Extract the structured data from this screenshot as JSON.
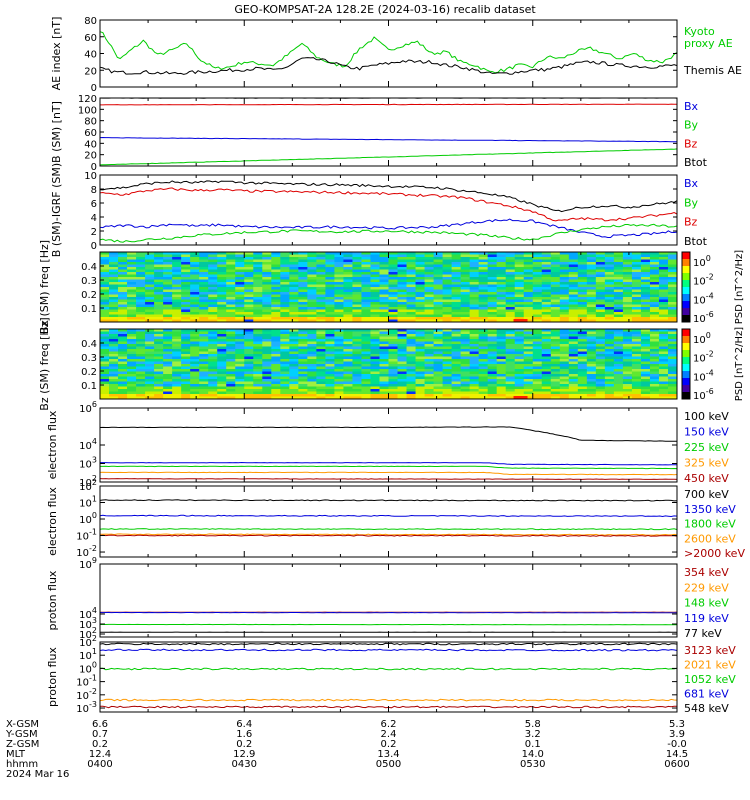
{
  "title": "GEO-KOMPSAT-2A 128.2E (2024-03-16) recalib dataset",
  "chart_data": [
    {
      "type": "line",
      "name": "ae",
      "ylabel": "AE index [nT]",
      "ylim": [
        0,
        80
      ],
      "yticks": [
        "0",
        "20",
        "40",
        "60",
        "80"
      ],
      "yscale": "linear",
      "series": [
        {
          "name": "Kyoto proxy AE",
          "color": "#00cc00",
          "x": [
            0,
            2,
            4,
            6,
            9,
            12,
            15,
            18,
            21,
            24,
            27,
            30,
            33,
            36,
            39,
            42,
            45,
            48,
            51,
            54,
            57,
            60,
            63,
            66,
            69,
            72,
            75,
            78,
            81,
            84,
            87,
            90,
            93,
            96,
            99,
            102,
            105,
            108,
            111,
            114,
            117,
            120
          ],
          "values": [
            68,
            52,
            32,
            42,
            55,
            38,
            44,
            52,
            32,
            22,
            24,
            30,
            28,
            26,
            38,
            52,
            36,
            28,
            25,
            46,
            58,
            44,
            50,
            54,
            40,
            42,
            30,
            26,
            18,
            20,
            26,
            24,
            36,
            34,
            42,
            46,
            40,
            34,
            40,
            32,
            30,
            40
          ]
        },
        {
          "name": "Themis AE",
          "color": "#000000",
          "x": [
            0,
            3,
            6,
            9,
            12,
            15,
            18,
            21,
            24,
            27,
            30,
            33,
            36,
            39,
            42,
            45,
            48,
            51,
            54,
            57,
            60,
            63,
            66,
            69,
            72,
            75,
            78,
            81,
            84,
            87,
            90,
            93,
            96,
            99,
            102,
            105,
            108,
            111,
            114,
            117,
            120
          ],
          "values": [
            22,
            18,
            17,
            18,
            17,
            16,
            17,
            18,
            19,
            20,
            21,
            22,
            20,
            24,
            34,
            33,
            30,
            24,
            22,
            26,
            28,
            31,
            30,
            30,
            26,
            24,
            20,
            16,
            16,
            18,
            20,
            21,
            24,
            28,
            30,
            28,
            26,
            25,
            24,
            25,
            26
          ]
        }
      ]
    },
    {
      "type": "line",
      "name": "b-sm",
      "ylabel": "B (SM) [nT]",
      "ylim": [
        0,
        120
      ],
      "yticks": [
        "0",
        "20",
        "40",
        "60",
        "80",
        "100",
        "120"
      ],
      "yscale": "linear",
      "series": [
        {
          "name": "Bx",
          "color": "#0000dd",
          "x": [
            0,
            120
          ],
          "values": [
            50,
            43
          ]
        },
        {
          "name": "By",
          "color": "#00cc00",
          "x": [
            0,
            120
          ],
          "values": [
            2,
            30
          ]
        },
        {
          "name": "Bz",
          "color": "#dd0000",
          "x": [
            0,
            120
          ],
          "values": [
            108,
            109
          ]
        },
        {
          "name": "Btot",
          "color": "#000000",
          "x": [
            0,
            120
          ],
          "values": [
            120,
            120
          ]
        }
      ]
    },
    {
      "type": "line",
      "name": "b-grf",
      "ylabel": "B (SM)-IGRF (SM)",
      "ylim": [
        0,
        10
      ],
      "yticks": [
        "0",
        "2",
        "4",
        "6",
        "8",
        "10"
      ],
      "yscale": "linear",
      "series": [
        {
          "name": "Bx",
          "color": "#0000dd",
          "x": [
            0,
            5,
            10,
            15,
            20,
            25,
            30,
            40,
            50,
            60,
            70,
            75,
            80,
            85,
            90,
            95,
            100,
            105,
            110,
            115,
            120
          ],
          "values": [
            2.5,
            2.8,
            2.6,
            3.0,
            2.7,
            2.9,
            2.6,
            2.5,
            2.6,
            2.4,
            2.6,
            3.0,
            3.4,
            3.6,
            3.4,
            2.6,
            1.8,
            1.2,
            1.4,
            1.6,
            2.0
          ]
        },
        {
          "name": "By",
          "color": "#00cc00",
          "x": [
            0,
            5,
            10,
            15,
            20,
            25,
            30,
            40,
            50,
            60,
            70,
            75,
            80,
            85,
            90,
            95,
            100,
            105,
            110,
            115,
            120
          ],
          "values": [
            0.8,
            0.5,
            0.8,
            1.0,
            1.4,
            1.6,
            1.8,
            2.0,
            1.9,
            2.0,
            1.8,
            1.6,
            1.4,
            1.0,
            0.8,
            1.6,
            2.2,
            2.6,
            2.8,
            2.8,
            2.6
          ]
        },
        {
          "name": "Bz",
          "color": "#dd0000",
          "x": [
            0,
            5,
            10,
            15,
            20,
            25,
            30,
            40,
            50,
            60,
            70,
            75,
            80,
            85,
            90,
            95,
            100,
            105,
            110,
            115,
            120
          ],
          "values": [
            7.4,
            7.2,
            7.8,
            8.0,
            7.8,
            7.9,
            7.7,
            7.6,
            7.5,
            7.3,
            7.0,
            6.8,
            6.2,
            5.6,
            4.8,
            3.4,
            3.8,
            3.6,
            3.8,
            4.2,
            4.6
          ]
        },
        {
          "name": "Btot",
          "color": "#000000",
          "x": [
            0,
            5,
            10,
            15,
            20,
            25,
            30,
            40,
            50,
            60,
            70,
            75,
            80,
            85,
            90,
            95,
            100,
            105,
            110,
            115,
            120
          ],
          "values": [
            8.0,
            8.2,
            8.8,
            9.0,
            8.9,
            9.1,
            8.9,
            8.7,
            8.6,
            8.4,
            8.2,
            7.8,
            7.4,
            6.8,
            5.8,
            4.8,
            5.4,
            5.6,
            5.4,
            5.8,
            6.2
          ]
        }
      ]
    },
    {
      "type": "heatmap",
      "name": "bx-spectrogram",
      "ylabel": "Bx (SM) freq [Hz]",
      "ylim": [
        0,
        0.5
      ],
      "yticks": [
        "0.1",
        "0.2",
        "0.3",
        "0.4"
      ],
      "colorbar": {
        "label": "PSD [nT^2/Hz]",
        "ticks": [
          "10^0",
          "10^-2",
          "10^-4",
          "10^-6"
        ]
      }
    },
    {
      "type": "heatmap",
      "name": "bz-spectrogram",
      "ylabel": "Bz (SM) freq [Hz]",
      "ylim": [
        0,
        0.5
      ],
      "yticks": [
        "0.1",
        "0.2",
        "0.3",
        "0.4"
      ],
      "colorbar": {
        "label": "PSD [nT^2/Hz]",
        "ticks": [
          "10^0",
          "10^-2",
          "10^-4",
          "10^-6"
        ]
      }
    },
    {
      "type": "line",
      "name": "electron-flux-1",
      "ylabel": "electron flux",
      "ylim": [
        100,
        1000000
      ],
      "yscale": "log",
      "series": [
        {
          "name": "100 keV",
          "color": "#000000",
          "x": [
            0,
            60,
            85,
            90,
            95,
            100,
            120
          ],
          "values": [
            90000,
            90000,
            95000,
            60000,
            35000,
            18000,
            16000
          ]
        },
        {
          "name": "150 keV",
          "color": "#0000dd",
          "x": [
            0,
            80,
            85,
            120
          ],
          "values": [
            1100,
            1100,
            900,
            850
          ]
        },
        {
          "name": "225 keV",
          "color": "#00cc00",
          "x": [
            0,
            80,
            85,
            120
          ],
          "values": [
            700,
            700,
            560,
            540
          ]
        },
        {
          "name": "325 keV",
          "color": "#ff9900",
          "x": [
            0,
            80,
            85,
            120
          ],
          "values": [
            330,
            330,
            260,
            250
          ]
        },
        {
          "name": "450 keV",
          "color": "#aa0000",
          "x": [
            0,
            120
          ],
          "values": [
            150,
            140
          ]
        }
      ]
    },
    {
      "type": "line",
      "name": "electron-flux-2",
      "ylabel": "electron flux",
      "ylim": [
        0.005,
        100
      ],
      "yscale": "log",
      "series": [
        {
          "name": "700 keV",
          "color": "#000000",
          "x": [
            0,
            120
          ],
          "values": [
            14,
            13
          ]
        },
        {
          "name": "1350 keV",
          "color": "#0000dd",
          "x": [
            0,
            120
          ],
          "values": [
            1.6,
            1.5
          ]
        },
        {
          "name": "1800 keV",
          "color": "#00cc00",
          "x": [
            0,
            120
          ],
          "values": [
            0.25,
            0.24
          ]
        },
        {
          "name": "2600 keV",
          "color": "#ff9900",
          "x": [
            0,
            120
          ],
          "values": [
            0.12,
            0.11
          ]
        },
        {
          "name": ">2000 keV",
          "color": "#aa0000",
          "x": [
            0,
            120
          ],
          "values": [
            0.1,
            0.095
          ]
        }
      ]
    },
    {
      "type": "line",
      "name": "proton-flux-1",
      "ylabel": "proton flux",
      "ylim": [
        50,
        1000000000
      ],
      "yscale": "log",
      "series": [
        {
          "name": "354 keV",
          "color": "#aa0000",
          "x": [
            0,
            120
          ],
          "values": [
            15000,
            15000
          ]
        },
        {
          "name": "229 keV",
          "color": "#ff9900",
          "x": [
            0,
            120
          ],
          "values": [
            14000,
            14000
          ]
        },
        {
          "name": "148 keV",
          "color": "#00cc00",
          "x": [
            0,
            120
          ],
          "values": [
            900,
            850
          ]
        },
        {
          "name": "119 keV",
          "color": "#0000dd",
          "x": [
            0,
            120
          ],
          "values": [
            14000,
            13500
          ]
        },
        {
          "name": "77 keV",
          "color": "#000000",
          "x": [
            0,
            120
          ],
          "values": [
            150,
            150
          ]
        }
      ]
    },
    {
      "type": "line",
      "name": "proton-flux-2",
      "ylabel": "proton flux",
      "ylim": [
        0.0005,
        100
      ],
      "yscale": "log",
      "series": [
        {
          "name": "3123 keV",
          "color": "#aa0000",
          "x": [
            0,
            120
          ],
          "values": [
            0.0012,
            0.0012
          ]
        },
        {
          "name": "2021 keV",
          "color": "#ff9900",
          "x": [
            0,
            120
          ],
          "values": [
            0.004,
            0.004
          ]
        },
        {
          "name": "1052 keV",
          "color": "#00cc00",
          "x": [
            0,
            120
          ],
          "values": [
            0.9,
            0.9
          ]
        },
        {
          "name": "681 keV",
          "color": "#0000dd",
          "x": [
            0,
            120
          ],
          "values": [
            25,
            24
          ]
        },
        {
          "name": "548 keV",
          "color": "#000000",
          "x": [
            0,
            120
          ],
          "values": [
            70,
            70
          ]
        }
      ]
    }
  ],
  "ephemeris": {
    "rows": [
      {
        "label": "X-GSM",
        "values": [
          "6.6",
          "6.4",
          "6.2",
          "5.8",
          "5.3"
        ]
      },
      {
        "label": "Y-GSM",
        "values": [
          "0.7",
          "1.6",
          "2.4",
          "3.2",
          "3.9"
        ]
      },
      {
        "label": "Z-GSM",
        "values": [
          "0.2",
          "0.2",
          "0.2",
          "0.1",
          "-0.0"
        ]
      },
      {
        "label": "MLT",
        "values": [
          "12.4",
          "12.9",
          "13.4",
          "14.0",
          "14.5"
        ]
      },
      {
        "label": "hhmm",
        "values": [
          "0400",
          "0430",
          "0500",
          "0530",
          "0600"
        ]
      }
    ],
    "date": "2024 Mar 16"
  },
  "log_ticks": {
    "electron-flux-1": [
      "10^6",
      "10^4",
      "10^3",
      "10^2"
    ],
    "electron-flux-2": [
      "10^2",
      "10^1",
      "10^0",
      "10^-1",
      "10^-2"
    ],
    "proton-flux-1": [
      "10^9",
      "10^4",
      "10^3",
      "10^2"
    ],
    "proton-flux-2": [
      "10^2",
      "10^1",
      "10^0",
      "10^-1",
      "10^-2",
      "10^-3"
    ]
  },
  "legend_labels": {
    "ae": [
      "Kyoto",
      "proxy AE",
      "Themis AE"
    ]
  }
}
